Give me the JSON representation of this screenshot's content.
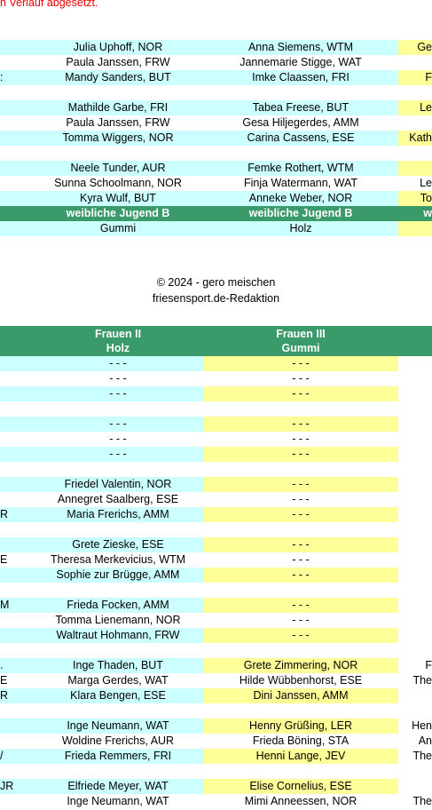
{
  "top_note": "n Verlauf abgesetzt.",
  "table1": {
    "rows": [
      [
        null,
        "Julia Uphoff, NOR",
        "Anna Siemens, WTM",
        "Ge"
      ],
      [
        null,
        "Paula Janssen, FRW",
        "Jannemarie Stigge, WAT",
        null
      ],
      [
        ":",
        "Mandy Sanders, BUT",
        "Imke Claassen, FRI",
        "F"
      ],
      [
        null,
        null,
        null,
        null
      ],
      [
        null,
        "Mathilde Garbe, FRI",
        "Tabea Freese, BUT",
        "Le"
      ],
      [
        null,
        "Paula Janssen, FRW",
        "Gesa Hiljegerdes, AMM",
        null
      ],
      [
        null,
        "Tomma Wiggers, NOR",
        "Carina Cassens, ESE",
        "Kath"
      ],
      [
        null,
        null,
        null,
        null
      ],
      [
        null,
        "Neele Tunder, AUR",
        "Femke Rothert, WTM",
        null
      ],
      [
        null,
        "Sunna Schoolmann, NOR",
        "Finja Watermann, WAT",
        "Le"
      ],
      [
        null,
        "Kyra Wulf, BUT",
        "Anneke Weber, NOR",
        "To"
      ],
      [
        null,
        "weibliche Jugend B",
        "weibliche Jugend B",
        "w"
      ],
      [
        null,
        "Gummi",
        "Holz",
        null
      ]
    ]
  },
  "footer": {
    "copyright": "© 2024 - gero meischen",
    "editor": "friesensport.de-Redaktion"
  },
  "table2": {
    "header": [
      [
        "Frauen II",
        "Holz"
      ],
      [
        "Frauen III",
        "Gummi"
      ]
    ],
    "rows": [
      [
        null,
        "- - -",
        "- - -",
        null
      ],
      [
        null,
        "- - -",
        "- - -",
        null
      ],
      [
        null,
        "- - -",
        "- - -",
        null
      ],
      [
        null,
        null,
        null,
        null
      ],
      [
        null,
        "- - -",
        "- - -",
        null
      ],
      [
        null,
        "- - -",
        "- - -",
        null
      ],
      [
        null,
        "- - -",
        "- - -",
        null
      ],
      [
        null,
        null,
        null,
        null
      ],
      [
        null,
        "Friedel Valentin, NOR",
        "- - -",
        null
      ],
      [
        null,
        "Annegret Saalberg, ESE",
        "- - -",
        null
      ],
      [
        "R",
        "Maria Frerichs, AMM",
        "- - -",
        null
      ],
      [
        null,
        null,
        null,
        null
      ],
      [
        null,
        "Grete Zieske, ESE",
        "- - -",
        null
      ],
      [
        "E",
        "Theresa Merkevicius, WTM",
        "- - -",
        null
      ],
      [
        null,
        "Sophie zur Brügge, AMM",
        "- - -",
        null
      ],
      [
        null,
        null,
        null,
        null
      ],
      [
        "M",
        "Frieda Focken,  AMM",
        "- - -",
        null
      ],
      [
        null,
        "Tomma Lienemann, NOR",
        "- - -",
        null
      ],
      [
        null,
        "Waltraut Hohmann, FRW",
        "- - -",
        null
      ],
      [
        null,
        null,
        null,
        null
      ],
      [
        ".",
        "Inge Thaden, BUT",
        "Grete Zimmering, NOR",
        "F"
      ],
      [
        "E",
        "Marga Gerdes, WAT",
        "Hilde Wübbenhorst, ESE",
        "The"
      ],
      [
        "R",
        "Klara Bengen, ESE",
        "Dini Janssen, AMM",
        null
      ],
      [
        null,
        null,
        null,
        null
      ],
      [
        null,
        "Inge Neumann, WAT",
        "Henny Grüßing, LER",
        "Hen"
      ],
      [
        null,
        "Woldine Frerichs, AUR",
        "Frieda Böning, STA",
        "An"
      ],
      [
        "/",
        "Frieda Remmers, FRI",
        "Henni Lange, JEV",
        "The"
      ],
      [
        null,
        null,
        null,
        null
      ],
      [
        "JR",
        "Elfriede Meyer, WAT",
        "Elise Cornelius, ESE",
        null
      ],
      [
        null,
        "Inge Neumann, WAT",
        "Mimi Anneessen, NOR",
        "The"
      ]
    ]
  }
}
